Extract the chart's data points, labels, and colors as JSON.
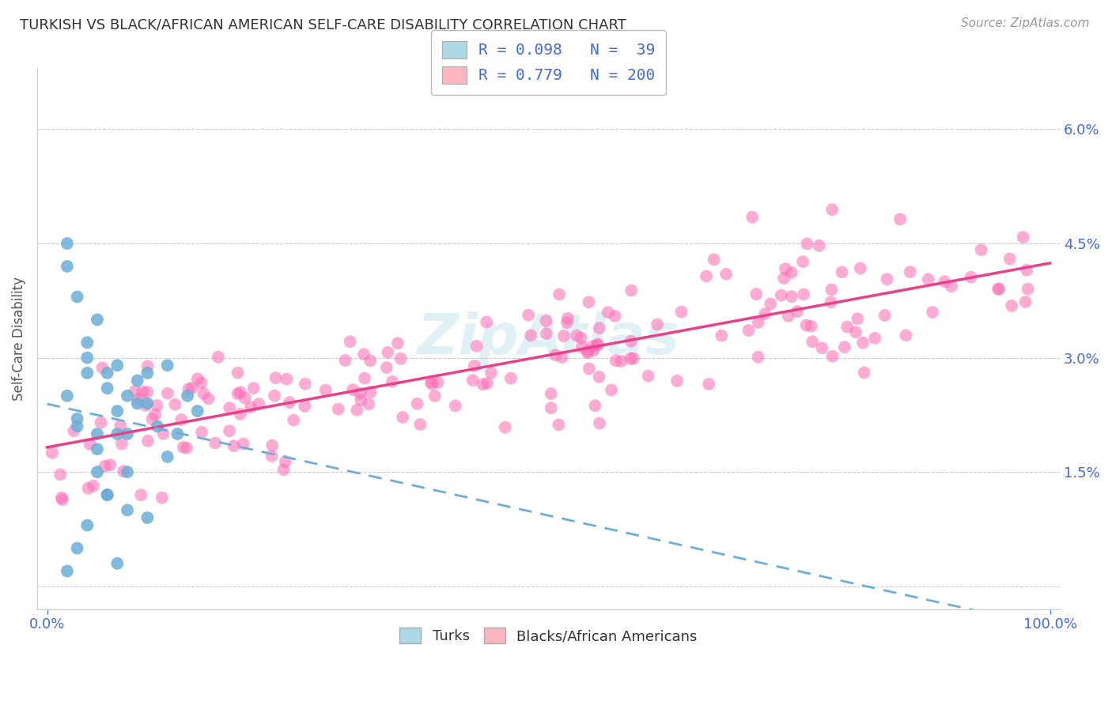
{
  "title": "TURKISH VS BLACK/AFRICAN AMERICAN SELF-CARE DISABILITY CORRELATION CHART",
  "source": "Source: ZipAtlas.com",
  "ylabel": "Self-Care Disability",
  "xlim": [
    0,
    100
  ],
  "legend": {
    "r1": 0.098,
    "n1": 39,
    "r2": 0.779,
    "n2": 200,
    "color1": "#add8e6",
    "color2": "#ffb6c1"
  },
  "series1_color": "#6baed6",
  "series2_color": "#ff69b4",
  "trendline1_color": "#6baed6",
  "trendline2_color": "#e8408a",
  "background_color": "#ffffff",
  "grid_color": "#cccccc",
  "tick_color": "#4169e1",
  "watermark_color": "#cce8f0",
  "figsize": [
    14.06,
    8.92
  ],
  "dpi": 100
}
